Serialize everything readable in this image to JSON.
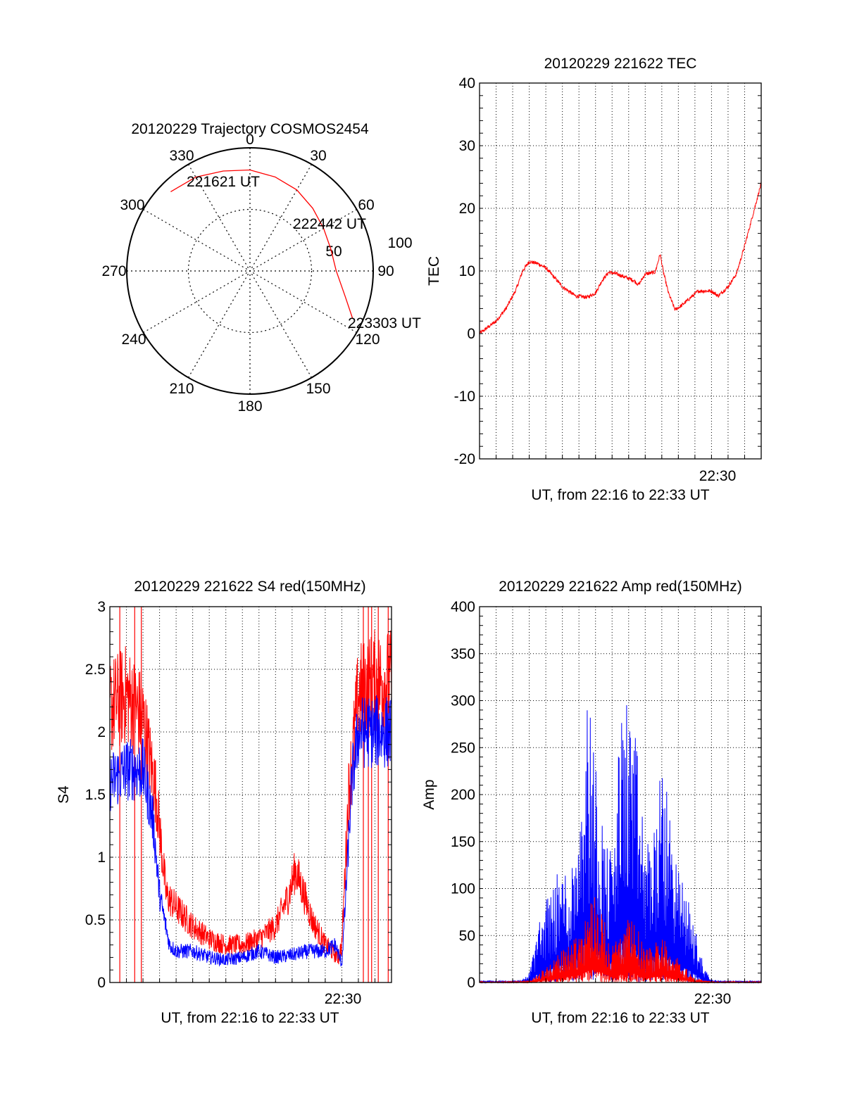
{
  "colors": {
    "red": "#ff0000",
    "blue": "#0000ff",
    "axis": "#000000",
    "grid": "#000000"
  },
  "chart_data": [
    {
      "id": "polar",
      "type": "polar-trajectory",
      "title": "20120229 Trajectory COSMOS2454",
      "azimuth_labels": [
        "0",
        "30",
        "60",
        "90",
        "120",
        "150",
        "180",
        "210",
        "240",
        "270",
        "300",
        "330"
      ],
      "elevation_ring_labels": [
        "50",
        "100"
      ],
      "trajectory": {
        "azimuth_deg": [
          315,
          330,
          345,
          0,
          15,
          30,
          45,
          60,
          75,
          90,
          105,
          115
        ],
        "zenith_deg": [
          91,
          88,
          84,
          82,
          79,
          76,
          72,
          69,
          68,
          70,
          80,
          92
        ],
        "color": "red"
      },
      "annotations": [
        {
          "text": "221621 UT",
          "azimuth_deg": 315,
          "zenith_deg": 91
        },
        {
          "text": "222442 UT",
          "azimuth_deg": 60,
          "zenith_deg": 69
        },
        {
          "text": "223303 UT",
          "azimuth_deg": 115,
          "zenith_deg": 92
        }
      ]
    },
    {
      "id": "tec",
      "type": "line",
      "title": "20120229 221622 TEC",
      "xlabel": "UT, from 22:16 to 22:33 UT",
      "ylabel": "TEC",
      "xlim_min": [
        0,
        17
      ],
      "ylim": [
        -20,
        40
      ],
      "yticks": [
        -20,
        -10,
        0,
        10,
        20,
        30,
        40
      ],
      "xtick_labels": [
        {
          "label": "22:30",
          "value": 14
        }
      ],
      "grid": true,
      "series": [
        {
          "color": "red",
          "noise": 0.6,
          "x": [
            0,
            0.5,
            1.0,
            1.6,
            2.2,
            2.6,
            3.0,
            3.5,
            4.0,
            5.0,
            5.8,
            6.5,
            7.0,
            7.4,
            7.8,
            8.3,
            8.8,
            9.3,
            9.6,
            10.0,
            10.6,
            10.9,
            11.1,
            11.4,
            11.8,
            12.2,
            13.2,
            14.0,
            14.4,
            15.0,
            15.5,
            16.0,
            16.5,
            17.0
          ],
          "y": [
            0,
            1,
            2,
            4,
            7,
            10,
            11.5,
            11.2,
            10.5,
            7.5,
            6,
            5.8,
            6.5,
            8.5,
            9.8,
            9.5,
            9,
            8.5,
            7.8,
            9.5,
            9.8,
            12.7,
            9.8,
            6.5,
            3.8,
            4.5,
            6.8,
            6.8,
            6,
            7.5,
            9.5,
            14,
            19,
            24
          ]
        }
      ]
    },
    {
      "id": "s4",
      "type": "line",
      "title": "20120229 221622 S4 red(150MHz)",
      "xlabel": "UT, from 22:16 to 22:33 UT",
      "ylabel": "S4",
      "xlim_min": [
        0,
        17
      ],
      "ylim": [
        0,
        3
      ],
      "yticks": [
        0,
        0.5,
        1,
        1.5,
        2,
        2.5,
        3
      ],
      "ytick_labels": [
        "0",
        "0.5",
        "1",
        "1.5",
        "2",
        "2.5",
        "3"
      ],
      "xtick_labels": [
        {
          "label": "22:30",
          "value": 14
        }
      ],
      "grid": true,
      "series": [
        {
          "color": "red",
          "noise": 0.22,
          "x": [
            0,
            1,
            2,
            2.8,
            3.4,
            4.0,
            5.0,
            6.0,
            7.0,
            8.0,
            9.0,
            10.0,
            10.8,
            11.2,
            11.6,
            12.2,
            13.0,
            13.8,
            14.0,
            14.4,
            15.0,
            16.0,
            17.0
          ],
          "y": [
            2.2,
            2.3,
            2.1,
            1.5,
            0.7,
            0.6,
            0.45,
            0.35,
            0.3,
            0.3,
            0.35,
            0.45,
            0.7,
            0.9,
            0.75,
            0.5,
            0.3,
            0.2,
            0.3,
            1.5,
            2.3,
            2.4,
            2.4
          ],
          "dropouts": [
            0.6,
            1.5,
            1.9,
            15.3,
            15.6,
            15.8,
            16.2,
            16.8
          ]
        },
        {
          "color": "blue",
          "noise": 0.18,
          "x": [
            0,
            1,
            2,
            2.6,
            3.0,
            3.6,
            4.0,
            5.0,
            6.0,
            7.0,
            8.0,
            9.0,
            10.0,
            11.0,
            12.0,
            13.0,
            13.6,
            14.0,
            14.2,
            14.6,
            15.0,
            16.0,
            17.0
          ],
          "y": [
            1.6,
            1.7,
            1.7,
            1.3,
            0.7,
            0.3,
            0.25,
            0.25,
            0.2,
            0.18,
            0.2,
            0.25,
            0.2,
            0.22,
            0.25,
            0.25,
            0.3,
            0.15,
            0.6,
            1.6,
            2.0,
            2.0,
            2.0
          ]
        }
      ]
    },
    {
      "id": "amp",
      "type": "line",
      "title": "20120229 221622 Amp red(150MHz)",
      "xlabel": "UT, from 22:16 to 22:33 UT",
      "ylabel": "Amp",
      "xlim_min": [
        0,
        17
      ],
      "ylim": [
        0,
        400
      ],
      "yticks": [
        0,
        50,
        100,
        150,
        200,
        250,
        300,
        350,
        400
      ],
      "xtick_labels": [
        {
          "label": "22:30",
          "value": 14
        }
      ],
      "grid": true,
      "series": [
        {
          "color": "blue",
          "noise": 0.55,
          "x": [
            0,
            1,
            2,
            2.5,
            3.0,
            3.5,
            4.0,
            4.5,
            5.0,
            5.5,
            6.0,
            6.5,
            7.0,
            7.5,
            8.0,
            8.5,
            9.0,
            9.5,
            10.0,
            10.5,
            11.0,
            11.5,
            12.0,
            12.5,
            13.0,
            13.5,
            14.0,
            15.0,
            17.0
          ],
          "y": [
            2,
            2,
            2,
            3,
            10,
            60,
            90,
            110,
            125,
            115,
            210,
            320,
            250,
            160,
            140,
            280,
            320,
            250,
            150,
            170,
            230,
            190,
            120,
            100,
            60,
            20,
            3,
            2,
            2
          ]
        },
        {
          "color": "red",
          "noise": 0.55,
          "x": [
            0,
            1,
            2,
            3.0,
            3.5,
            4.0,
            4.5,
            5.0,
            5.5,
            6.0,
            6.5,
            7.0,
            7.5,
            8.0,
            8.5,
            9.0,
            9.5,
            10.0,
            10.5,
            11.0,
            11.5,
            12.0,
            12.5,
            13.0,
            14.0,
            17.0
          ],
          "y": [
            1,
            1,
            1,
            2,
            8,
            18,
            25,
            35,
            45,
            55,
            80,
            100,
            70,
            40,
            55,
            70,
            60,
            35,
            40,
            55,
            40,
            25,
            15,
            5,
            1,
            1
          ]
        }
      ]
    }
  ]
}
